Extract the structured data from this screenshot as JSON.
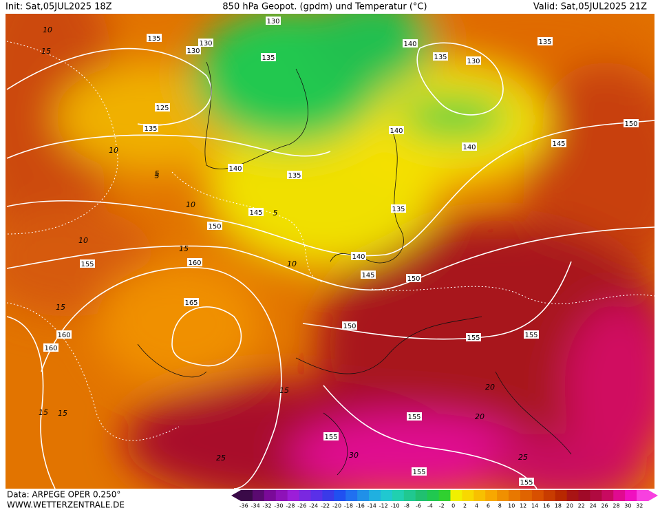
{
  "header": {
    "init": "Init: Sat,05JUL2025 18Z",
    "title": "850 hPa Geopot. (gpdm) und Temperatur (°C)",
    "valid": "Valid: Sat,05JUL2025 21Z"
  },
  "footer": {
    "data": "Data: ARPEGE OPER 0.250°",
    "site": "WWW.WETTERZENTRALE.DE"
  },
  "map": {
    "geopotential_labels": [
      130,
      135,
      130,
      130,
      135,
      140,
      135,
      130,
      135,
      125,
      135,
      140,
      140,
      150,
      145,
      140,
      135,
      135,
      145,
      150,
      155,
      160,
      140,
      145,
      150,
      165,
      150,
      160,
      160,
      155,
      155,
      155,
      155,
      155,
      155
    ],
    "temperature_labels": [
      10,
      15,
      10,
      5,
      10,
      10,
      15,
      15,
      5,
      10,
      15,
      15,
      20,
      20,
      25,
      25,
      30,
      15,
      5
    ]
  },
  "color_scale": {
    "values": [
      -36,
      -34,
      -32,
      -30,
      -28,
      -26,
      -24,
      -22,
      -20,
      -18,
      -16,
      -14,
      -12,
      -10,
      -8,
      -6,
      -4,
      -2,
      0,
      2,
      4,
      6,
      8,
      10,
      12,
      14,
      16,
      18,
      20,
      22,
      24,
      26,
      28,
      30,
      32
    ],
    "colors": [
      "#3a0a48",
      "#5a0a70",
      "#7a0a98",
      "#8e12b8",
      "#9c1ed8",
      "#7a28e0",
      "#5a30e8",
      "#3a3ae8",
      "#2050f0",
      "#2070f0",
      "#2090e8",
      "#20b0e0",
      "#20c8d0",
      "#20d0b0",
      "#20c890",
      "#20c070",
      "#20c850",
      "#30d030",
      "#f0f000",
      "#f8d800",
      "#f8c000",
      "#f8a800",
      "#f09000",
      "#e87800",
      "#e06400",
      "#d85000",
      "#c83c00",
      "#b82800",
      "#a81414",
      "#a00a28",
      "#b00a40",
      "#c80a60",
      "#e00a90",
      "#f010c0",
      "#f840e0"
    ]
  }
}
